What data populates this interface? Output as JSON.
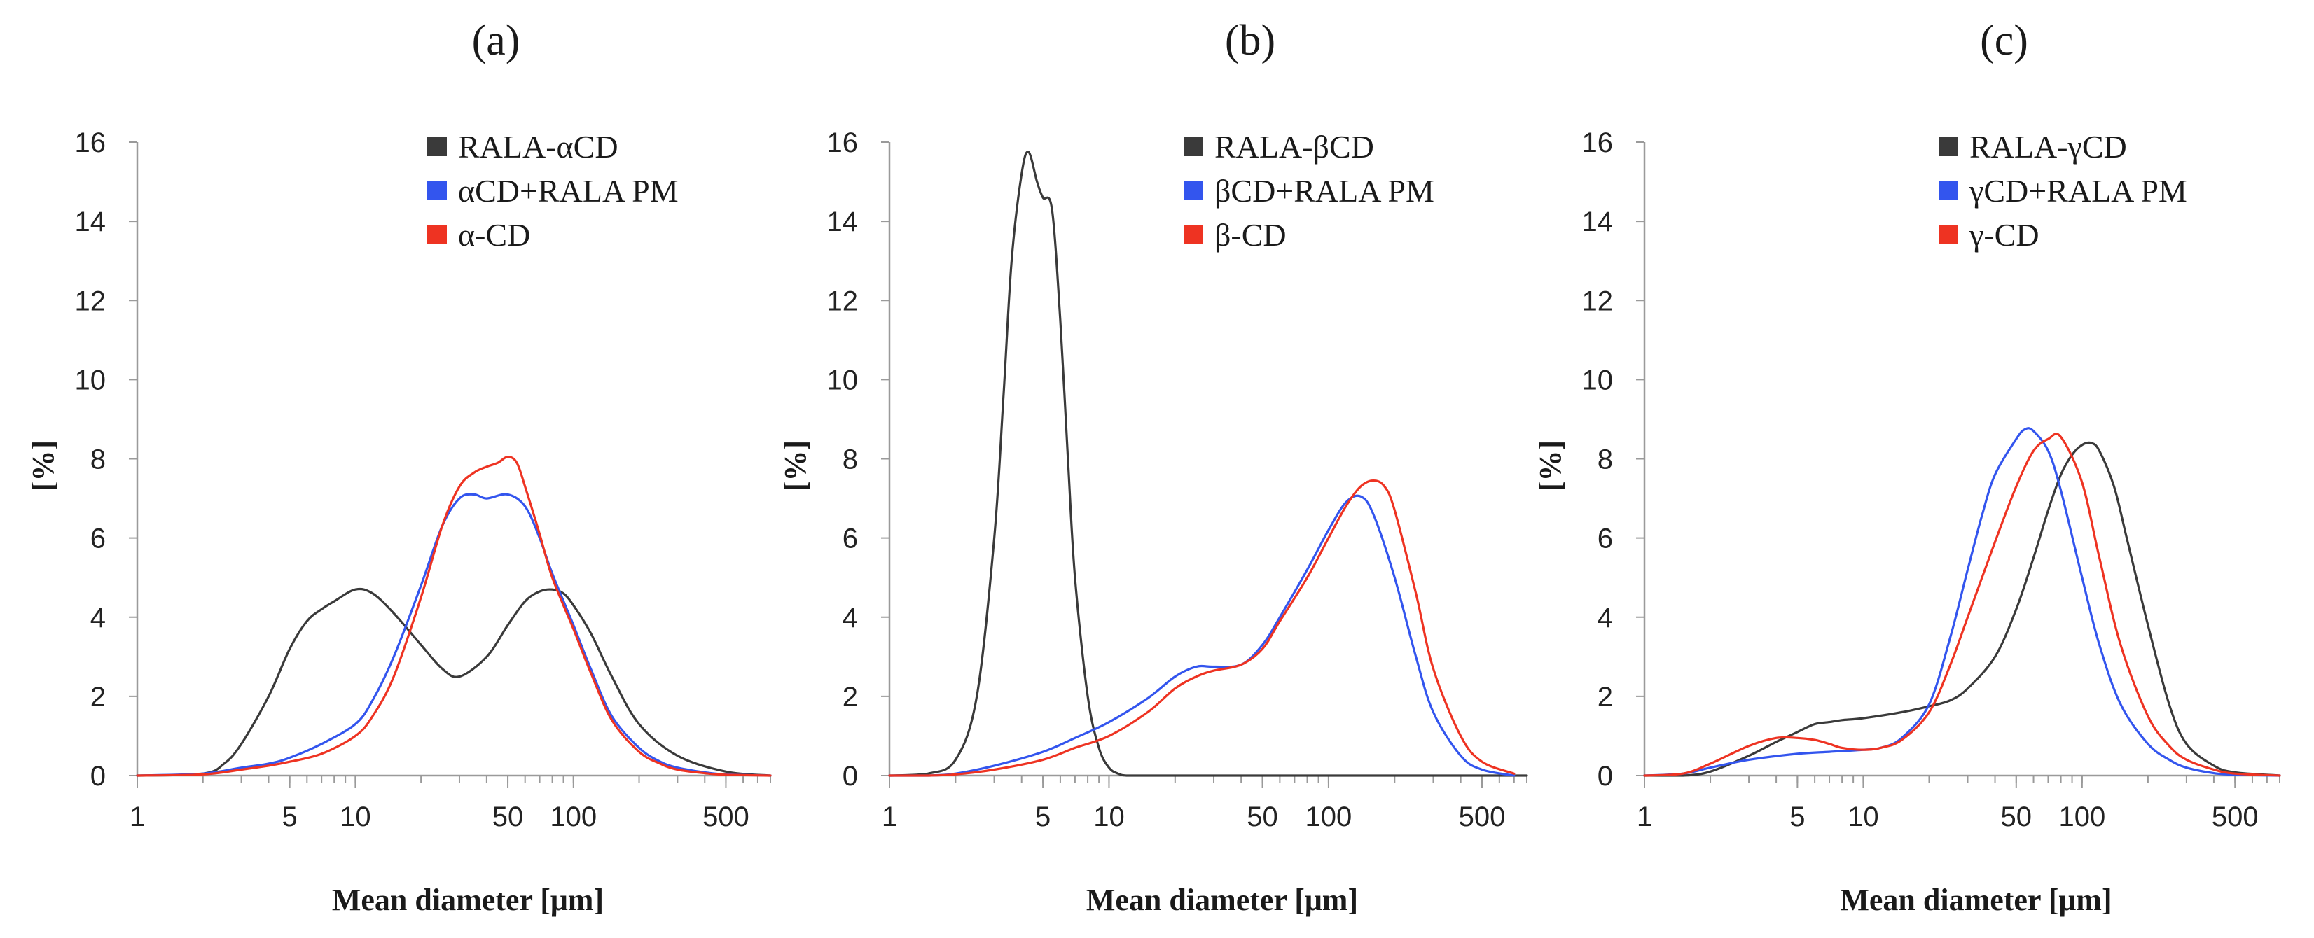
{
  "chart_data": [
    {
      "type": "line",
      "panel_label": "(a)",
      "title": "",
      "xlabel": "Mean diameter [μm]",
      "ylabel": "[%]",
      "xscale": "log",
      "xlim": [
        1,
        800
      ],
      "ylim": [
        0,
        16
      ],
      "x_ticks": [
        1,
        5,
        10,
        50,
        100,
        500
      ],
      "x_tick_labels": [
        "1",
        "5",
        "10",
        "50",
        "100",
        "500"
      ],
      "y_ticks": [
        0,
        2,
        4,
        6,
        8,
        10,
        12,
        14,
        16
      ],
      "y_tick_labels": [
        "0",
        "2",
        "4",
        "6",
        "8",
        "10",
        "12",
        "14",
        "16"
      ],
      "legend_position": "top-right",
      "series": [
        {
          "name": "RALA-αCD",
          "color": "#3a3a3a",
          "x": [
            1,
            2,
            2.5,
            3,
            4,
            5,
            6,
            7,
            8,
            10,
            12,
            15,
            20,
            25,
            30,
            40,
            50,
            60,
            70,
            80,
            90,
            100,
            120,
            150,
            200,
            300,
            500,
            800
          ],
          "y": [
            0,
            0.05,
            0.3,
            0.8,
            2.0,
            3.2,
            3.9,
            4.2,
            4.4,
            4.7,
            4.6,
            4.1,
            3.3,
            2.7,
            2.5,
            3.0,
            3.8,
            4.4,
            4.65,
            4.7,
            4.6,
            4.3,
            3.6,
            2.5,
            1.3,
            0.5,
            0.1,
            0
          ]
        },
        {
          "name": "αCD+RALA  PM",
          "color": "#3355ee",
          "x": [
            1,
            2,
            3,
            4,
            5,
            7,
            10,
            12,
            15,
            20,
            25,
            30,
            35,
            40,
            50,
            60,
            70,
            80,
            100,
            120,
            150,
            200,
            250,
            300,
            400,
            500,
            800
          ],
          "y": [
            0,
            0.05,
            0.2,
            0.3,
            0.45,
            0.8,
            1.3,
            1.9,
            3.0,
            4.8,
            6.3,
            7.0,
            7.1,
            7.0,
            7.1,
            6.8,
            6.0,
            5.1,
            3.8,
            2.7,
            1.5,
            0.7,
            0.35,
            0.2,
            0.08,
            0.03,
            0
          ]
        },
        {
          "name": "α-CD",
          "color": "#ee3322",
          "x": [
            1,
            2,
            3,
            4,
            5,
            7,
            10,
            12,
            15,
            20,
            25,
            30,
            35,
            40,
            45,
            50,
            55,
            60,
            70,
            80,
            100,
            120,
            150,
            200,
            250,
            300,
            400,
            500,
            800
          ],
          "y": [
            0,
            0.03,
            0.15,
            0.25,
            0.35,
            0.55,
            1.0,
            1.5,
            2.5,
            4.5,
            6.3,
            7.3,
            7.65,
            7.8,
            7.9,
            8.05,
            7.9,
            7.3,
            6.1,
            5.0,
            3.7,
            2.6,
            1.4,
            0.6,
            0.3,
            0.15,
            0.06,
            0.02,
            0
          ]
        }
      ]
    },
    {
      "type": "line",
      "panel_label": "(b)",
      "title": "",
      "xlabel": "Mean diameter [μm]",
      "ylabel": "[%]",
      "xscale": "log",
      "xlim": [
        1,
        800
      ],
      "ylim": [
        0,
        16
      ],
      "x_ticks": [
        1,
        5,
        10,
        50,
        100,
        500
      ],
      "x_tick_labels": [
        "1",
        "5",
        "10",
        "50",
        "100",
        "500"
      ],
      "y_ticks": [
        0,
        2,
        4,
        6,
        8,
        10,
        12,
        14,
        16
      ],
      "y_tick_labels": [
        "0",
        "2",
        "4",
        "6",
        "8",
        "10",
        "12",
        "14",
        "16"
      ],
      "legend_position": "top-right",
      "series": [
        {
          "name": "RALA-βCD",
          "color": "#3a3a3a",
          "x": [
            1,
            1.5,
            2,
            2.5,
            3,
            3.3,
            3.6,
            4,
            4.3,
            4.7,
            5,
            5.5,
            6,
            6.5,
            7,
            8,
            9,
            10,
            11,
            12,
            15,
            20,
            800
          ],
          "y": [
            0,
            0.05,
            0.4,
            2.0,
            6.0,
            9.5,
            13.0,
            15.2,
            15.75,
            15.0,
            14.6,
            14.3,
            11.5,
            8.0,
            5.0,
            2.0,
            0.7,
            0.2,
            0.05,
            0,
            0,
            0,
            0
          ]
        },
        {
          "name": "βCD+RALA  PM",
          "color": "#3355ee",
          "x": [
            1,
            1.5,
            2,
            3,
            5,
            7,
            10,
            15,
            20,
            25,
            30,
            40,
            50,
            60,
            80,
            100,
            120,
            140,
            160,
            200,
            250,
            300,
            400,
            500,
            700
          ],
          "y": [
            0,
            0,
            0.05,
            0.25,
            0.6,
            0.95,
            1.35,
            1.95,
            2.5,
            2.75,
            2.75,
            2.8,
            3.3,
            4.0,
            5.2,
            6.2,
            6.9,
            7.05,
            6.6,
            5.0,
            3.0,
            1.6,
            0.5,
            0.15,
            0
          ]
        },
        {
          "name": "β-CD",
          "color": "#ee3322",
          "x": [
            1,
            1.5,
            2,
            3,
            5,
            7,
            10,
            15,
            20,
            25,
            30,
            40,
            50,
            60,
            80,
            100,
            120,
            140,
            160,
            180,
            200,
            250,
            300,
            400,
            500,
            700
          ],
          "y": [
            0,
            0,
            0.03,
            0.15,
            0.4,
            0.7,
            1.0,
            1.6,
            2.2,
            2.5,
            2.65,
            2.8,
            3.2,
            3.9,
            5.0,
            6.0,
            6.8,
            7.3,
            7.45,
            7.3,
            6.7,
            4.6,
            2.7,
            1.0,
            0.35,
            0.05
          ]
        }
      ]
    },
    {
      "type": "line",
      "panel_label": "(c)",
      "title": "",
      "xlabel": "Mean diameter [μm]",
      "ylabel": "[%]",
      "xscale": "log",
      "xlim": [
        1,
        800
      ],
      "ylim": [
        0,
        16
      ],
      "x_ticks": [
        1,
        5,
        10,
        50,
        100,
        500
      ],
      "x_tick_labels": [
        "1",
        "5",
        "10",
        "50",
        "100",
        "500"
      ],
      "y_ticks": [
        0,
        2,
        4,
        6,
        8,
        10,
        12,
        14,
        16
      ],
      "y_tick_labels": [
        "0",
        "2",
        "4",
        "6",
        "8",
        "10",
        "12",
        "14",
        "16"
      ],
      "legend_position": "top-right",
      "series": [
        {
          "name": "RALA-γCD",
          "color": "#3a3a3a",
          "x": [
            1,
            1.5,
            2,
            3,
            4,
            5,
            6,
            7,
            8,
            10,
            15,
            20,
            25,
            30,
            40,
            50,
            60,
            70,
            80,
            90,
            100,
            110,
            120,
            140,
            160,
            200,
            250,
            300,
            400,
            500,
            800
          ],
          "y": [
            0,
            0,
            0.1,
            0.5,
            0.85,
            1.1,
            1.3,
            1.35,
            1.4,
            1.45,
            1.6,
            1.75,
            1.9,
            2.2,
            3.0,
            4.2,
            5.5,
            6.7,
            7.6,
            8.1,
            8.35,
            8.4,
            8.2,
            7.3,
            6.0,
            3.8,
            1.8,
            0.8,
            0.25,
            0.08,
            0
          ]
        },
        {
          "name": "γCD+RALA  PM",
          "color": "#3355ee",
          "x": [
            1,
            1.5,
            2,
            3,
            5,
            7,
            10,
            12,
            15,
            20,
            25,
            30,
            35,
            40,
            50,
            55,
            60,
            70,
            80,
            100,
            120,
            150,
            200,
            250,
            300,
            400,
            500,
            800
          ],
          "y": [
            0,
            0.05,
            0.2,
            0.4,
            0.55,
            0.6,
            0.65,
            0.7,
            0.95,
            1.8,
            3.5,
            5.2,
            6.6,
            7.6,
            8.5,
            8.75,
            8.7,
            8.2,
            7.2,
            5.0,
            3.3,
            1.8,
            0.8,
            0.4,
            0.2,
            0.06,
            0.02,
            0
          ]
        },
        {
          "name": "γ-CD",
          "color": "#ee3322",
          "x": [
            1,
            1.5,
            2,
            3,
            4,
            5,
            6,
            7,
            8,
            10,
            12,
            15,
            20,
            25,
            30,
            40,
            50,
            60,
            70,
            80,
            100,
            120,
            150,
            200,
            250,
            300,
            400,
            500,
            800
          ],
          "y": [
            0,
            0.05,
            0.3,
            0.75,
            0.95,
            0.95,
            0.9,
            0.8,
            0.7,
            0.65,
            0.7,
            0.9,
            1.6,
            2.8,
            4.0,
            5.9,
            7.3,
            8.2,
            8.5,
            8.55,
            7.4,
            5.5,
            3.3,
            1.5,
            0.75,
            0.4,
            0.15,
            0.05,
            0
          ]
        }
      ]
    }
  ]
}
